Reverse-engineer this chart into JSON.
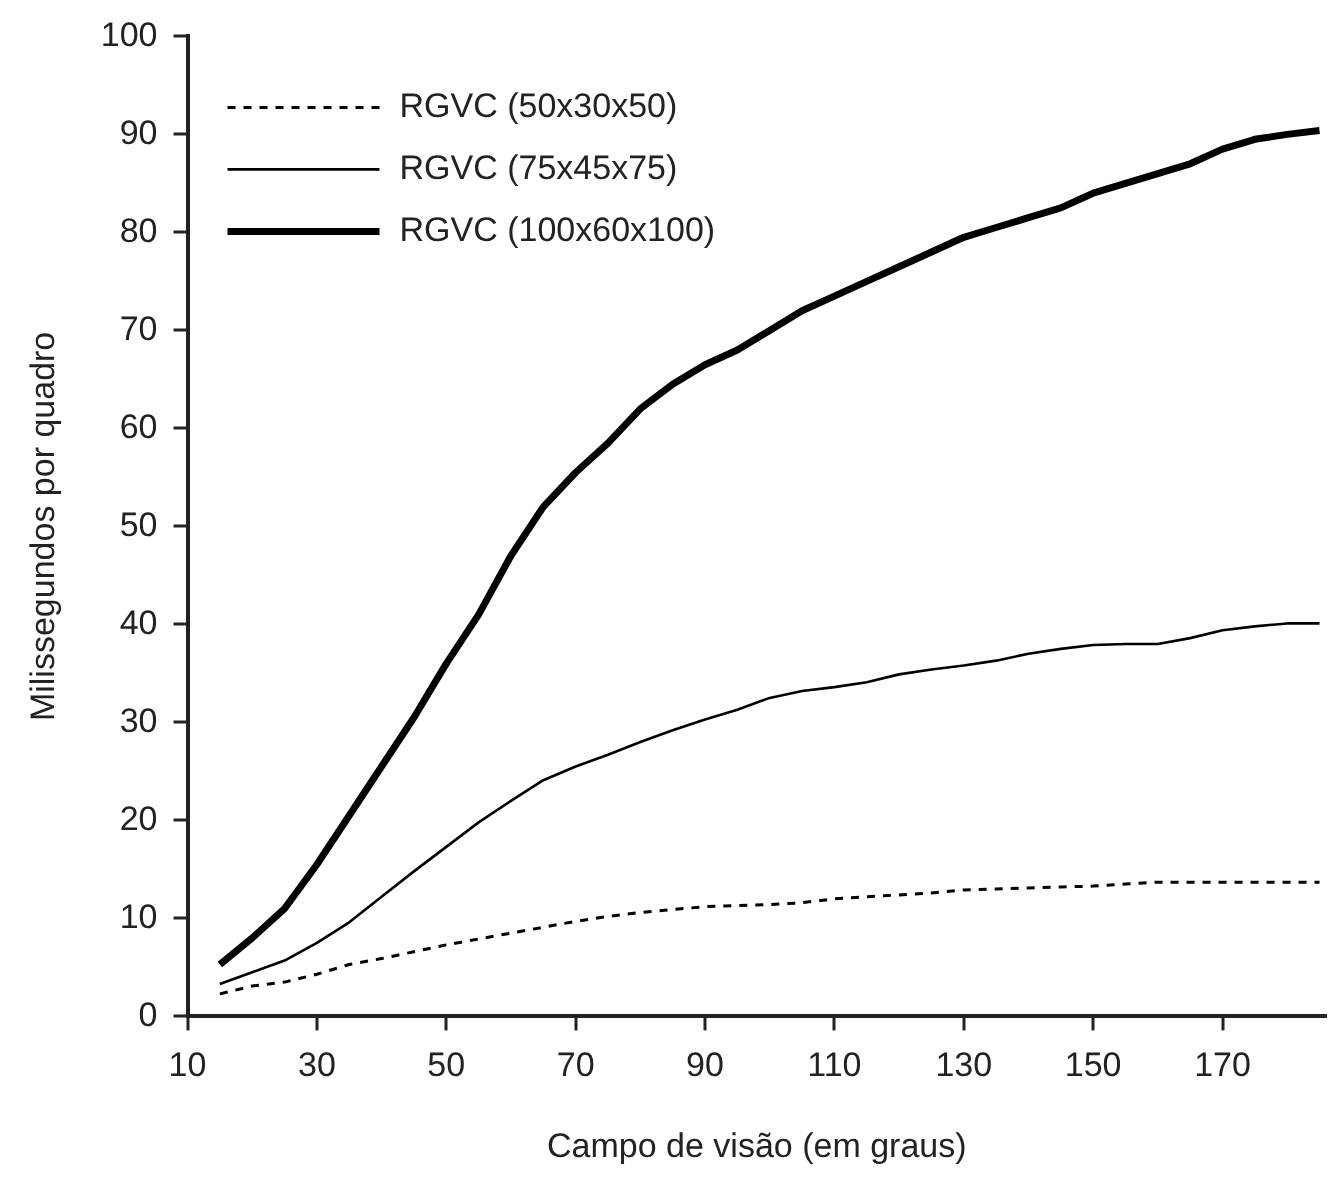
{
  "chart_data": {
    "type": "line",
    "xlabel": "Campo de visão (em graus)",
    "ylabel": "Milissegundos por quadro",
    "x": [
      15,
      20,
      25,
      30,
      35,
      40,
      45,
      50,
      55,
      60,
      65,
      70,
      75,
      80,
      85,
      90,
      95,
      100,
      105,
      110,
      115,
      120,
      125,
      130,
      135,
      140,
      145,
      150,
      155,
      160,
      165,
      170,
      175,
      180,
      185
    ],
    "xlim": [
      10,
      186
    ],
    "xticks": [
      10,
      30,
      50,
      70,
      90,
      110,
      130,
      150,
      170
    ],
    "ylim": [
      0,
      100
    ],
    "yticks": [
      0,
      10,
      20,
      30,
      40,
      50,
      60,
      70,
      80,
      90,
      100
    ],
    "grid": false,
    "legend": "top left",
    "marker": "none",
    "series": [
      {
        "name": "RGVC (50x30x50)",
        "color": "#000000",
        "line_style": "dotted",
        "values": [
          2.3,
          3.1,
          3.5,
          4.3,
          5.3,
          5.9,
          6.6,
          7.3,
          7.9,
          8.5,
          9.1,
          9.7,
          10.2,
          10.6,
          10.9,
          11.2,
          11.3,
          11.4,
          11.6,
          12,
          12.2,
          12.4,
          12.6,
          12.9,
          13,
          13.1,
          13.2,
          13.3,
          13.5,
          13.7,
          13.7,
          13.7,
          13.7,
          13.7,
          13.7
        ]
      },
      {
        "name": "RGVC (75x45x75)",
        "color": "#000000",
        "line_style": "solid",
        "values": [
          3.3,
          4.5,
          5.7,
          7.5,
          9.6,
          12.2,
          14.8,
          17.3,
          19.8,
          22,
          24.1,
          25.5,
          26.7,
          28,
          29.2,
          30.3,
          31.3,
          32.5,
          33.2,
          33.6,
          34.1,
          34.9,
          35.4,
          35.8,
          36.3,
          37,
          37.5,
          37.9,
          38,
          38,
          38.6,
          39.4,
          39.8,
          40.1,
          40.1
        ]
      },
      {
        "name": "RGVC (100x60x100)",
        "color": "#000000",
        "line_style": "solid",
        "values": [
          5.3,
          8,
          11,
          15.5,
          20.5,
          25.5,
          30.5,
          36,
          41,
          47,
          52,
          55.5,
          58.5,
          62,
          64.5,
          66.5,
          68,
          70,
          72,
          73.5,
          75,
          76.5,
          78,
          79.5,
          80.5,
          81.5,
          82.5,
          84,
          85,
          86,
          87,
          88.5,
          89.5,
          90,
          90.4
        ]
      }
    ]
  }
}
